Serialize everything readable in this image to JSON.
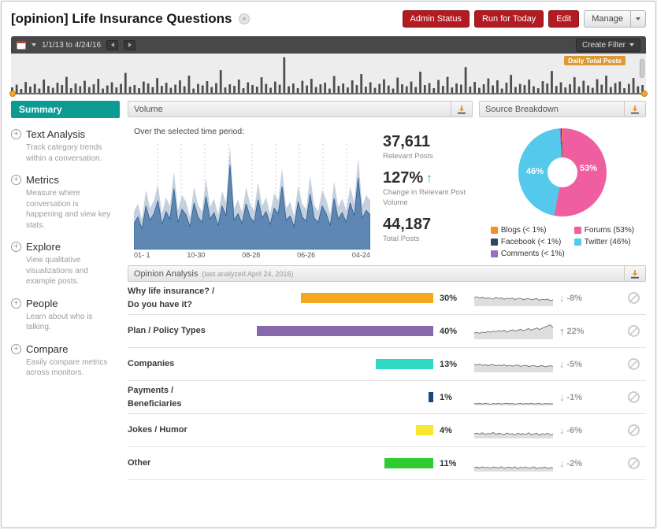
{
  "header": {
    "title": "[opinion] Life Insurance Questions",
    "buttons": [
      {
        "label": "Admin Status",
        "style": "danger"
      },
      {
        "label": "Run for Today",
        "style": "danger"
      },
      {
        "label": "Edit",
        "style": "danger"
      },
      {
        "label": "Manage",
        "style": "neutral"
      }
    ]
  },
  "datebar": {
    "range": "1/1/13 to 4/24/16",
    "create_filter": "Create Filter"
  },
  "timeline": {
    "badge": "Daily Total Posts"
  },
  "sidebar": {
    "selected": "Summary",
    "items": [
      {
        "label": "Text Analysis",
        "desc": "Track category trends within a conversation."
      },
      {
        "label": "Metrics",
        "desc": "Measure where conversation is happening and view key stats."
      },
      {
        "label": "Explore",
        "desc": "View qualitative visualizations and example posts."
      },
      {
        "label": "People",
        "desc": "Learn about who is talking."
      },
      {
        "label": "Compare",
        "desc": "Easily compare metrics across monitors."
      }
    ]
  },
  "volume": {
    "title": "Volume",
    "subtitle": "Over the selected time period:",
    "x_ticks": [
      "01- 1",
      "10-30",
      "08-28",
      "06-26",
      "04-24"
    ],
    "stats": [
      {
        "value": "37,611",
        "label": "Relevant Posts",
        "trend": "none"
      },
      {
        "value": "127%",
        "label": "Change in Relevant Post Volume",
        "trend": "up"
      },
      {
        "value": "44,187",
        "label": "Total Posts",
        "trend": "none"
      }
    ]
  },
  "source_breakdown": {
    "title": "Source Breakdown",
    "donut_labels": [
      "46%",
      "53%"
    ],
    "legend": [
      {
        "label": "Blogs (< 1%)",
        "color": "#f59123"
      },
      {
        "label": "Forums (53%)",
        "color": "#ef5f9f"
      },
      {
        "label": "Facebook (< 1%)",
        "color": "#344563"
      },
      {
        "label": "Twitter (46%)",
        "color": "#55c9ec"
      },
      {
        "label": "Comments (< 1%)",
        "color": "#9a6dc6"
      }
    ]
  },
  "opinion": {
    "title": "Opinion Analysis",
    "subtitle": "(last analyzed April 24, 2016)",
    "categories": [
      {
        "label_lines": [
          "Why life insurance? /",
          "Do you have it?"
        ],
        "pct": 30,
        "pct_label": "30%",
        "color": "#f5a61e",
        "change": "-8%",
        "trend": "down"
      },
      {
        "label_lines": [
          "Plan / Policy Types"
        ],
        "pct": 40,
        "pct_label": "40%",
        "color": "#8668ab",
        "change": "22%",
        "trend": "up"
      },
      {
        "label_lines": [
          "Companies"
        ],
        "pct": 13,
        "pct_label": "13%",
        "color": "#2ed9c3",
        "change": "-5%",
        "trend": "down"
      },
      {
        "label_lines": [
          "Payments /",
          "Beneficiaries"
        ],
        "pct": 1,
        "pct_label": "1%",
        "color": "#174a7c",
        "change": "-1%",
        "trend": "down"
      },
      {
        "label_lines": [
          "Jokes / Humor"
        ],
        "pct": 4,
        "pct_label": "4%",
        "color": "#f7e633",
        "change": "-6%",
        "trend": "down"
      },
      {
        "label_lines": [
          "Other"
        ],
        "pct": 11,
        "pct_label": "11%",
        "color": "#2ecc2e",
        "change": "-2%",
        "trend": "down"
      }
    ]
  },
  "chart_data": {
    "daily_total_posts": {
      "type": "bar",
      "title": "Daily Total Posts",
      "ylim": [
        0,
        100
      ],
      "values": [
        18,
        25,
        14,
        32,
        20,
        27,
        15,
        38,
        22,
        17,
        30,
        24,
        45,
        16,
        28,
        21,
        35,
        19,
        26,
        40,
        15,
        23,
        31,
        18,
        27,
        55,
        20,
        24,
        16,
        33,
        28,
        19,
        42,
        22,
        30,
        17,
        25,
        36,
        21,
        48,
        15,
        27,
        23,
        34,
        19,
        29,
        62,
        18,
        26,
        22,
        38,
        16,
        31,
        24,
        20,
        44,
        27,
        17,
        33,
        25,
        95,
        21,
        28,
        16,
        35,
        23,
        40,
        19,
        26,
        30,
        15,
        47,
        22,
        28,
        18,
        36,
        24,
        52,
        20,
        31,
        17,
        27,
        39,
        23,
        15,
        43,
        26,
        21,
        33,
        19,
        58,
        24,
        29,
        16,
        37,
        22,
        45,
        18,
        28,
        25,
        70,
        20,
        32,
        17,
        26,
        41,
        23,
        36,
        15,
        30,
        50,
        19,
        27,
        24,
        38,
        21,
        16,
        34,
        28,
        60,
        22,
        31,
        18,
        26,
        44,
        20,
        35,
        23,
        17,
        39,
        25,
        48,
        19,
        29,
        33,
        16,
        27,
        42,
        21,
        24
      ]
    },
    "volume_over_time": {
      "type": "area",
      "x_ticks": [
        "01- 1",
        "10-30",
        "08-28",
        "06-26",
        "04-24"
      ],
      "ylim": [
        0,
        100
      ],
      "grid": "vertical-dashed",
      "series": [
        {
          "name": "Total Posts",
          "values": [
            35,
            42,
            28,
            55,
            38,
            45,
            60,
            33,
            48,
            40,
            72,
            36,
            50,
            44,
            30,
            58,
            41,
            35,
            65,
            39,
            47,
            32,
            54,
            43,
            95,
            38,
            46,
            34,
            57,
            42,
            36,
            62,
            40,
            48,
            33,
            52,
            45,
            75,
            38,
            44,
            31,
            59,
            42,
            37,
            68,
            41,
            35,
            55,
            46,
            32,
            63,
            39,
            47,
            36,
            58,
            43,
            85,
            40,
            50,
            45
          ]
        },
        {
          "name": "Relevant Posts",
          "values": [
            24,
            30,
            19,
            40,
            27,
            33,
            45,
            23,
            35,
            28,
            56,
            25,
            37,
            32,
            21,
            43,
            30,
            25,
            49,
            28,
            34,
            22,
            40,
            31,
            78,
            27,
            33,
            24,
            42,
            30,
            25,
            46,
            29,
            35,
            23,
            38,
            33,
            58,
            27,
            31,
            21,
            44,
            30,
            26,
            51,
            29,
            25,
            40,
            33,
            22,
            47,
            28,
            34,
            25,
            43,
            31,
            66,
            29,
            36,
            32
          ]
        }
      ]
    },
    "source_breakdown": {
      "type": "pie",
      "slices": [
        {
          "label": "Forums",
          "pct": 53,
          "color": "#ef5f9f"
        },
        {
          "label": "Twitter",
          "pct": 46,
          "color": "#55c9ec"
        },
        {
          "label": "Comments",
          "pct": 0.4,
          "color": "#9a6dc6"
        },
        {
          "label": "Facebook",
          "pct": 0.3,
          "color": "#344563"
        },
        {
          "label": "Blogs",
          "pct": 0.3,
          "color": "#f59123"
        }
      ]
    },
    "category_trends": {
      "type": "line",
      "ylim": [
        0,
        100
      ],
      "series": [
        {
          "name": "Why life insurance? / Do you have it?",
          "values": [
            55,
            60,
            52,
            58,
            48,
            54,
            50,
            45,
            56,
            49,
            53,
            44,
            50,
            47,
            52,
            43,
            48,
            51,
            42,
            46,
            50,
            40,
            45,
            48,
            38,
            44,
            41,
            46,
            36,
            40
          ]
        },
        {
          "name": "Plan / Policy Types",
          "values": [
            40,
            44,
            38,
            46,
            42,
            50,
            45,
            52,
            48,
            55,
            50,
            58,
            46,
            54,
            60,
            52,
            57,
            63,
            55,
            60,
            68,
            58,
            65,
            72,
            62,
            70,
            78,
            85,
            92,
            75
          ]
        },
        {
          "name": "Companies",
          "values": [
            50,
            46,
            52,
            44,
            49,
            42,
            47,
            50,
            41,
            46,
            43,
            48,
            40,
            45,
            39,
            44,
            47,
            38,
            42,
            46,
            37,
            41,
            44,
            36,
            40,
            43,
            35,
            39,
            42,
            38
          ]
        },
        {
          "name": "Payments / Beneficiaries",
          "values": [
            12,
            10,
            14,
            9,
            13,
            11,
            8,
            12,
            10,
            13,
            9,
            11,
            14,
            10,
            12,
            8,
            11,
            13,
            9,
            12,
            10,
            14,
            9,
            11,
            13,
            8,
            12,
            10,
            11,
            9
          ]
        },
        {
          "name": "Jokes / Humor",
          "values": [
            30,
            34,
            28,
            36,
            25,
            32,
            29,
            38,
            26,
            33,
            30,
            24,
            35,
            28,
            31,
            22,
            34,
            27,
            30,
            25,
            36,
            24,
            29,
            33,
            21,
            31,
            26,
            34,
            23,
            28
          ]
        },
        {
          "name": "Other",
          "values": [
            25,
            28,
            22,
            30,
            24,
            27,
            21,
            29,
            25,
            23,
            31,
            20,
            26,
            28,
            22,
            30,
            19,
            27,
            24,
            29,
            21,
            25,
            30,
            18,
            26,
            23,
            28,
            20,
            25,
            22
          ]
        }
      ]
    }
  }
}
